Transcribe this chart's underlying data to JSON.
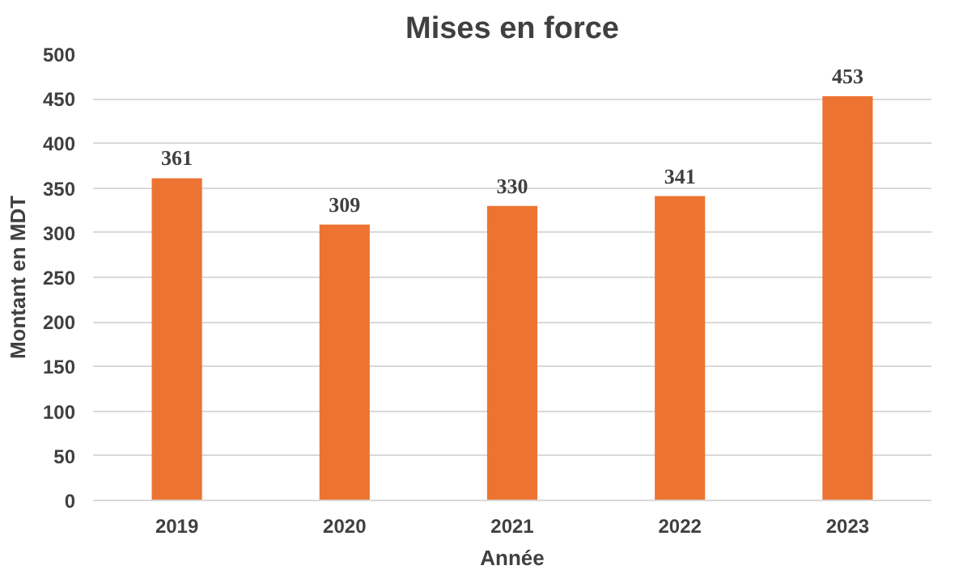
{
  "chart_data": {
    "type": "bar",
    "title": "Mises en force",
    "xlabel": "Année",
    "ylabel": "Montant en MDT",
    "categories": [
      "2019",
      "2020",
      "2021",
      "2022",
      "2023"
    ],
    "values": [
      361,
      309,
      330,
      341,
      453
    ],
    "color": "#ed7332",
    "ylim": [
      0,
      500
    ],
    "yticks": [
      0,
      50,
      100,
      150,
      200,
      250,
      300,
      350,
      400,
      450,
      500
    ],
    "grid": "y",
    "data_labels": true
  }
}
